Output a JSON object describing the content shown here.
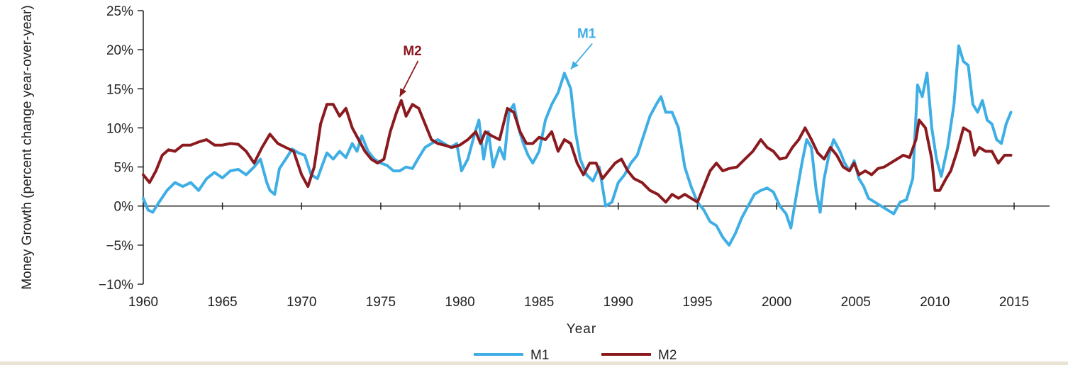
{
  "chart_data": {
    "type": "line",
    "title": "",
    "xlabel": "Year",
    "ylabel": "Money Growth (percent change year-over-year)",
    "xlim": [
      1960,
      2015
    ],
    "ylim": [
      -10,
      25
    ],
    "x_ticks": [
      1960,
      1965,
      1970,
      1975,
      1980,
      1985,
      1990,
      1995,
      2000,
      2005,
      2010,
      2015
    ],
    "x_tick_labels": [
      "1960",
      "1965",
      "1970",
      "1975",
      "1980",
      "1985",
      "1990",
      "1995",
      "2000",
      "2005",
      "2010",
      "2015"
    ],
    "y_ticks": [
      -10,
      -5,
      0,
      5,
      10,
      15,
      20,
      25
    ],
    "y_tick_labels": [
      "−10%",
      "−5%",
      "0%",
      "5%",
      "10%",
      "15%",
      "20%",
      "25%"
    ],
    "legend": {
      "placement": "bottom-center"
    },
    "series": [
      {
        "name": "M1",
        "color": "#3eaee5",
        "points": [
          [
            1960.0,
            1.0
          ],
          [
            1960.3,
            -0.5
          ],
          [
            1960.6,
            -0.8
          ],
          [
            1961.0,
            0.5
          ],
          [
            1961.5,
            2.0
          ],
          [
            1962.0,
            3.0
          ],
          [
            1962.5,
            2.5
          ],
          [
            1963.0,
            3.0
          ],
          [
            1963.5,
            2.0
          ],
          [
            1964.0,
            3.5
          ],
          [
            1964.5,
            4.3
          ],
          [
            1965.0,
            3.6
          ],
          [
            1965.5,
            4.5
          ],
          [
            1966.0,
            4.7
          ],
          [
            1966.5,
            4.0
          ],
          [
            1967.0,
            5.0
          ],
          [
            1967.4,
            6.0
          ],
          [
            1967.8,
            3.0
          ],
          [
            1968.0,
            2.0
          ],
          [
            1968.3,
            1.5
          ],
          [
            1968.6,
            4.8
          ],
          [
            1969.0,
            6.0
          ],
          [
            1969.4,
            7.3
          ],
          [
            1969.8,
            6.8
          ],
          [
            1970.2,
            6.5
          ],
          [
            1970.6,
            4.0
          ],
          [
            1971.0,
            3.5
          ],
          [
            1971.3,
            5.2
          ],
          [
            1971.6,
            6.8
          ],
          [
            1972.0,
            6.0
          ],
          [
            1972.4,
            7.0
          ],
          [
            1972.8,
            6.2
          ],
          [
            1973.2,
            8.0
          ],
          [
            1973.5,
            7.0
          ],
          [
            1973.8,
            9.0
          ],
          [
            1974.2,
            7.0
          ],
          [
            1974.6,
            6.0
          ],
          [
            1975.0,
            5.5
          ],
          [
            1975.4,
            5.2
          ],
          [
            1975.8,
            4.5
          ],
          [
            1976.2,
            4.5
          ],
          [
            1976.6,
            5.0
          ],
          [
            1977.0,
            4.8
          ],
          [
            1977.4,
            6.2
          ],
          [
            1977.8,
            7.5
          ],
          [
            1978.2,
            8.0
          ],
          [
            1978.6,
            8.5
          ],
          [
            1979.0,
            8.0
          ],
          [
            1979.4,
            7.5
          ],
          [
            1979.8,
            8.0
          ],
          [
            1980.1,
            4.5
          ],
          [
            1980.5,
            6.0
          ],
          [
            1980.9,
            9.0
          ],
          [
            1981.2,
            11.0
          ],
          [
            1981.5,
            6.0
          ],
          [
            1981.8,
            9.5
          ],
          [
            1982.1,
            5.0
          ],
          [
            1982.5,
            7.5
          ],
          [
            1982.8,
            6.0
          ],
          [
            1983.1,
            12.0
          ],
          [
            1983.4,
            13.0
          ],
          [
            1983.7,
            10.0
          ],
          [
            1984.0,
            8.0
          ],
          [
            1984.3,
            6.5
          ],
          [
            1984.6,
            5.5
          ],
          [
            1985.0,
            7.0
          ],
          [
            1985.4,
            11.0
          ],
          [
            1985.8,
            13.0
          ],
          [
            1986.2,
            14.5
          ],
          [
            1986.6,
            17.0
          ],
          [
            1987.0,
            15.0
          ],
          [
            1987.3,
            9.5
          ],
          [
            1987.6,
            6.0
          ],
          [
            1988.0,
            4.0
          ],
          [
            1988.4,
            3.2
          ],
          [
            1988.8,
            5.0
          ],
          [
            1989.2,
            0.0
          ],
          [
            1989.6,
            0.5
          ],
          [
            1990.0,
            3.0
          ],
          [
            1990.4,
            4.0
          ],
          [
            1990.8,
            5.5
          ],
          [
            1991.2,
            6.5
          ],
          [
            1991.6,
            9.0
          ],
          [
            1992.0,
            11.5
          ],
          [
            1992.4,
            13.0
          ],
          [
            1992.7,
            14.0
          ],
          [
            1993.0,
            12.0
          ],
          [
            1993.4,
            12.0
          ],
          [
            1993.8,
            10.0
          ],
          [
            1994.2,
            5.0
          ],
          [
            1994.6,
            2.5
          ],
          [
            1995.0,
            0.5
          ],
          [
            1995.4,
            -0.5
          ],
          [
            1995.8,
            -2.0
          ],
          [
            1996.2,
            -2.5
          ],
          [
            1996.6,
            -4.0
          ],
          [
            1997.0,
            -5.0
          ],
          [
            1997.4,
            -3.5
          ],
          [
            1997.8,
            -1.5
          ],
          [
            1998.2,
            0.0
          ],
          [
            1998.6,
            1.5
          ],
          [
            1999.0,
            2.0
          ],
          [
            1999.4,
            2.3
          ],
          [
            1999.8,
            1.8
          ],
          [
            2000.2,
            0.0
          ],
          [
            2000.6,
            -1.0
          ],
          [
            2000.9,
            -2.8
          ],
          [
            2001.3,
            2.0
          ],
          [
            2001.6,
            5.5
          ],
          [
            2001.9,
            8.5
          ],
          [
            2002.2,
            7.5
          ],
          [
            2002.5,
            2.0
          ],
          [
            2002.75,
            -0.8
          ],
          [
            2003.0,
            3.5
          ],
          [
            2003.3,
            6.5
          ],
          [
            2003.6,
            8.5
          ],
          [
            2004.0,
            7.0
          ],
          [
            2004.3,
            5.5
          ],
          [
            2004.6,
            4.5
          ],
          [
            2004.9,
            5.8
          ],
          [
            2005.2,
            3.5
          ],
          [
            2005.5,
            2.5
          ],
          [
            2005.8,
            1.0
          ],
          [
            2006.2,
            0.5
          ],
          [
            2006.6,
            0.0
          ],
          [
            2007.0,
            -0.5
          ],
          [
            2007.4,
            -1.0
          ],
          [
            2007.8,
            0.5
          ],
          [
            2008.2,
            0.8
          ],
          [
            2008.6,
            3.5
          ],
          [
            2008.9,
            15.5
          ],
          [
            2009.2,
            14.0
          ],
          [
            2009.5,
            17.0
          ],
          [
            2009.8,
            10.0
          ],
          [
            2010.1,
            6.0
          ],
          [
            2010.4,
            3.8
          ],
          [
            2010.8,
            7.5
          ],
          [
            2011.2,
            13.0
          ],
          [
            2011.5,
            20.5
          ],
          [
            2011.8,
            18.5
          ],
          [
            2012.1,
            18.0
          ],
          [
            2012.4,
            13.0
          ],
          [
            2012.7,
            12.0
          ],
          [
            2013.0,
            13.5
          ],
          [
            2013.3,
            11.0
          ],
          [
            2013.6,
            10.5
          ],
          [
            2013.9,
            8.5
          ],
          [
            2014.2,
            8.0
          ],
          [
            2014.5,
            10.5
          ],
          [
            2014.8,
            12.0
          ]
        ]
      },
      {
        "name": "M2",
        "color": "#8b1a1f",
        "points": [
          [
            1960.0,
            4.0
          ],
          [
            1960.4,
            3.0
          ],
          [
            1960.8,
            4.5
          ],
          [
            1961.2,
            6.5
          ],
          [
            1961.6,
            7.2
          ],
          [
            1962.0,
            7.0
          ],
          [
            1962.5,
            7.8
          ],
          [
            1963.0,
            7.8
          ],
          [
            1963.5,
            8.2
          ],
          [
            1964.0,
            8.5
          ],
          [
            1964.5,
            7.8
          ],
          [
            1965.0,
            7.8
          ],
          [
            1965.5,
            8.0
          ],
          [
            1966.0,
            7.9
          ],
          [
            1966.5,
            7.0
          ],
          [
            1967.0,
            5.5
          ],
          [
            1967.5,
            7.5
          ],
          [
            1968.0,
            9.2
          ],
          [
            1968.5,
            8.0
          ],
          [
            1969.0,
            7.5
          ],
          [
            1969.5,
            7.0
          ],
          [
            1970.0,
            4.0
          ],
          [
            1970.4,
            2.5
          ],
          [
            1970.8,
            5.0
          ],
          [
            1971.2,
            10.5
          ],
          [
            1971.6,
            13.0
          ],
          [
            1972.0,
            13.0
          ],
          [
            1972.4,
            11.5
          ],
          [
            1972.8,
            12.5
          ],
          [
            1973.2,
            10.0
          ],
          [
            1973.6,
            8.5
          ],
          [
            1974.0,
            7.0
          ],
          [
            1974.4,
            6.0
          ],
          [
            1974.8,
            5.5
          ],
          [
            1975.2,
            6.0
          ],
          [
            1975.6,
            9.5
          ],
          [
            1976.0,
            12.0
          ],
          [
            1976.3,
            13.5
          ],
          [
            1976.6,
            11.5
          ],
          [
            1977.0,
            13.0
          ],
          [
            1977.4,
            12.5
          ],
          [
            1977.8,
            10.5
          ],
          [
            1978.2,
            8.5
          ],
          [
            1978.6,
            8.0
          ],
          [
            1979.0,
            7.8
          ],
          [
            1979.5,
            7.5
          ],
          [
            1980.0,
            7.8
          ],
          [
            1980.5,
            8.5
          ],
          [
            1981.0,
            9.5
          ],
          [
            1981.3,
            8.0
          ],
          [
            1981.6,
            9.5
          ],
          [
            1982.0,
            9.0
          ],
          [
            1982.5,
            8.5
          ],
          [
            1983.0,
            12.5
          ],
          [
            1983.4,
            12.0
          ],
          [
            1983.8,
            9.5
          ],
          [
            1984.2,
            8.0
          ],
          [
            1984.6,
            8.0
          ],
          [
            1985.0,
            8.8
          ],
          [
            1985.4,
            8.5
          ],
          [
            1985.8,
            9.5
          ],
          [
            1986.2,
            7.0
          ],
          [
            1986.6,
            8.5
          ],
          [
            1987.0,
            8.0
          ],
          [
            1987.4,
            5.5
          ],
          [
            1987.8,
            4.0
          ],
          [
            1988.2,
            5.5
          ],
          [
            1988.6,
            5.5
          ],
          [
            1989.0,
            3.5
          ],
          [
            1989.4,
            4.5
          ],
          [
            1989.8,
            5.5
          ],
          [
            1990.2,
            6.0
          ],
          [
            1990.6,
            4.5
          ],
          [
            1991.0,
            3.5
          ],
          [
            1991.5,
            3.0
          ],
          [
            1992.0,
            2.0
          ],
          [
            1992.5,
            1.5
          ],
          [
            1993.0,
            0.5
          ],
          [
            1993.4,
            1.5
          ],
          [
            1993.8,
            1.0
          ],
          [
            1994.2,
            1.5
          ],
          [
            1994.6,
            1.0
          ],
          [
            1995.0,
            0.5
          ],
          [
            1995.4,
            2.5
          ],
          [
            1995.8,
            4.5
          ],
          [
            1996.2,
            5.5
          ],
          [
            1996.6,
            4.5
          ],
          [
            1997.0,
            4.8
          ],
          [
            1997.5,
            5.0
          ],
          [
            1998.0,
            6.0
          ],
          [
            1998.5,
            7.0
          ],
          [
            1999.0,
            8.5
          ],
          [
            1999.4,
            7.5
          ],
          [
            1999.8,
            7.0
          ],
          [
            2000.2,
            6.0
          ],
          [
            2000.6,
            6.2
          ],
          [
            2001.0,
            7.5
          ],
          [
            2001.4,
            8.5
          ],
          [
            2001.8,
            10.0
          ],
          [
            2002.2,
            8.5
          ],
          [
            2002.6,
            6.8
          ],
          [
            2003.0,
            6.0
          ],
          [
            2003.4,
            7.5
          ],
          [
            2003.8,
            6.5
          ],
          [
            2004.2,
            5.0
          ],
          [
            2004.6,
            4.5
          ],
          [
            2004.9,
            5.5
          ],
          [
            2005.2,
            4.0
          ],
          [
            2005.6,
            4.5
          ],
          [
            2006.0,
            4.0
          ],
          [
            2006.4,
            4.8
          ],
          [
            2006.8,
            5.0
          ],
          [
            2007.2,
            5.5
          ],
          [
            2007.6,
            6.0
          ],
          [
            2008.0,
            6.5
          ],
          [
            2008.4,
            6.2
          ],
          [
            2008.8,
            8.5
          ],
          [
            2009.0,
            11.0
          ],
          [
            2009.4,
            10.0
          ],
          [
            2009.8,
            6.0
          ],
          [
            2010.0,
            2.0
          ],
          [
            2010.3,
            2.0
          ],
          [
            2010.7,
            3.5
          ],
          [
            2011.0,
            4.5
          ],
          [
            2011.4,
            7.0
          ],
          [
            2011.8,
            10.0
          ],
          [
            2012.2,
            9.5
          ],
          [
            2012.5,
            6.5
          ],
          [
            2012.8,
            7.5
          ],
          [
            2013.2,
            7.0
          ],
          [
            2013.6,
            7.0
          ],
          [
            2014.0,
            5.5
          ],
          [
            2014.4,
            6.5
          ],
          [
            2014.8,
            6.5
          ]
        ]
      }
    ],
    "annotations": [
      {
        "text": "M1",
        "series": "M1",
        "arrow_to": [
          1987.0,
          17.5
        ],
        "text_at": [
          1988.0,
          21.5
        ]
      },
      {
        "text": "M2",
        "series": "M2",
        "arrow_to": [
          1976.2,
          14.0
        ],
        "text_at": [
          1977.0,
          19.3
        ]
      }
    ]
  }
}
